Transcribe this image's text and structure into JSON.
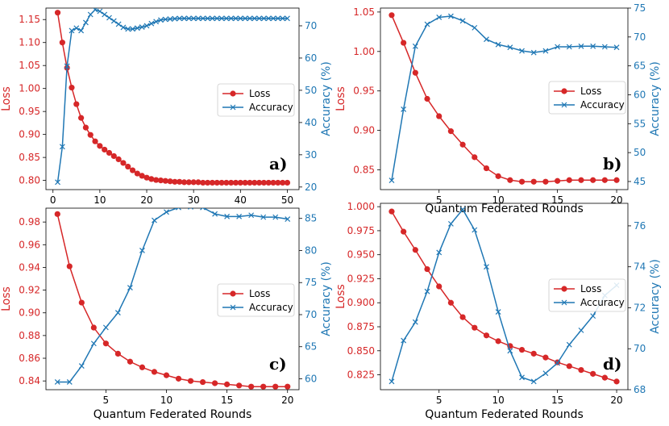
{
  "colors": {
    "loss": "#d62728",
    "accuracy": "#1f77b4"
  },
  "chart_data": [
    {
      "type": "line",
      "panel_label": "a)",
      "xlabel": "",
      "ylabel_left": "Loss",
      "ylabel_right": "Accuracy (%)",
      "xlim": [
        -1.5,
        52.5
      ],
      "ylim_left": [
        0.78,
        1.175
      ],
      "ylim_right": [
        19.2,
        75.5
      ],
      "xticks": [
        0,
        10,
        20,
        30,
        40,
        50
      ],
      "yticks_left": [
        0.8,
        0.85,
        0.9,
        0.95,
        1.0,
        1.05,
        1.1,
        1.15
      ],
      "yticks_right": [
        20,
        30,
        40,
        50,
        60,
        70
      ],
      "legend": [
        "Loss",
        "Accuracy"
      ],
      "x": [
        1,
        2,
        3,
        4,
        5,
        6,
        7,
        8,
        9,
        10,
        11,
        12,
        13,
        14,
        15,
        16,
        17,
        18,
        19,
        20,
        21,
        22,
        23,
        24,
        25,
        26,
        27,
        28,
        29,
        30,
        31,
        32,
        33,
        34,
        35,
        36,
        37,
        38,
        39,
        40,
        41,
        42,
        43,
        44,
        45,
        46,
        47,
        48,
        49,
        50
      ],
      "series": [
        {
          "name": "Loss",
          "axis": "left",
          "values": [
            1.165,
            1.1,
            1.045,
            1.002,
            0.966,
            0.936,
            0.915,
            0.899,
            0.885,
            0.875,
            0.867,
            0.86,
            0.853,
            0.846,
            0.838,
            0.83,
            0.822,
            0.815,
            0.81,
            0.806,
            0.803,
            0.801,
            0.8,
            0.799,
            0.798,
            0.797,
            0.797,
            0.796,
            0.796,
            0.796,
            0.796,
            0.795,
            0.795,
            0.795,
            0.795,
            0.795,
            0.795,
            0.795,
            0.795,
            0.795,
            0.795,
            0.795,
            0.795,
            0.795,
            0.795,
            0.795,
            0.795,
            0.795,
            0.795,
            0.795
          ]
        },
        {
          "name": "Accuracy",
          "axis": "right",
          "values": [
            21.5,
            32.5,
            57.5,
            68.5,
            69.3,
            68.5,
            71.0,
            73.5,
            75.0,
            74.5,
            73.5,
            72.5,
            71.5,
            70.5,
            69.5,
            69.0,
            69.0,
            69.3,
            69.6,
            70.0,
            70.7,
            71.3,
            71.8,
            72.0,
            72.1,
            72.2,
            72.3,
            72.3,
            72.3,
            72.3,
            72.3,
            72.3,
            72.3,
            72.3,
            72.3,
            72.3,
            72.3,
            72.3,
            72.3,
            72.3,
            72.3,
            72.3,
            72.3,
            72.3,
            72.3,
            72.3,
            72.3,
            72.3,
            72.3,
            72.3
          ]
        }
      ]
    },
    {
      "type": "line",
      "panel_label": "b)",
      "xlabel": "Quantum Federated Rounds",
      "ylabel_left": "Loss",
      "ylabel_right": "Accuracy (%)",
      "xlim": [
        0.05,
        20.95
      ],
      "ylim_left": [
        0.825,
        1.055
      ],
      "ylim_right": [
        43.6,
        75
      ],
      "xticks": [
        5,
        10,
        15,
        20
      ],
      "yticks_left": [
        0.85,
        0.9,
        0.95,
        1.0,
        1.05
      ],
      "yticks_right": [
        45,
        50,
        55,
        60,
        65,
        70,
        75
      ],
      "legend": [
        "Loss",
        "Accuracy"
      ],
      "x": [
        1,
        2,
        3,
        4,
        5,
        6,
        7,
        8,
        9,
        10,
        11,
        12,
        13,
        14,
        15,
        16,
        17,
        18,
        19,
        20
      ],
      "series": [
        {
          "name": "Loss",
          "axis": "left",
          "values": [
            1.046,
            1.011,
            0.973,
            0.94,
            0.918,
            0.899,
            0.882,
            0.866,
            0.852,
            0.842,
            0.837,
            0.835,
            0.835,
            0.835,
            0.836,
            0.837,
            0.837,
            0.837,
            0.837,
            0.837
          ]
        },
        {
          "name": "Accuracy",
          "axis": "right",
          "values": [
            45.2,
            57.5,
            68.4,
            72.2,
            73.4,
            73.6,
            72.8,
            71.6,
            69.6,
            68.7,
            68.2,
            67.6,
            67.3,
            67.6,
            68.3,
            68.3,
            68.4,
            68.4,
            68.3,
            68.2
          ]
        }
      ]
    },
    {
      "type": "line",
      "panel_label": "c)",
      "xlabel": "Quantum Federated Rounds",
      "ylabel_left": "Loss",
      "ylabel_right": "Accuracy (%)",
      "xlim": [
        0.05,
        20.95
      ],
      "ylim_left": [
        0.8323,
        0.9922
      ],
      "ylim_right": [
        58.3,
        86.6
      ],
      "xticks": [
        5,
        10,
        15,
        20
      ],
      "yticks_left": [
        0.84,
        0.86,
        0.88,
        0.9,
        0.92,
        0.94,
        0.96,
        0.98
      ],
      "yticks_right": [
        60,
        65,
        70,
        75,
        80,
        85
      ],
      "legend": [
        "Loss",
        "Accuracy"
      ],
      "x": [
        1,
        2,
        3,
        4,
        5,
        6,
        7,
        8,
        9,
        10,
        11,
        12,
        13,
        14,
        15,
        16,
        17,
        18,
        19,
        20
      ],
      "series": [
        {
          "name": "Loss",
          "axis": "left",
          "values": [
            0.987,
            0.941,
            0.909,
            0.887,
            0.873,
            0.864,
            0.857,
            0.852,
            0.848,
            0.845,
            0.842,
            0.84,
            0.839,
            0.838,
            0.837,
            0.836,
            0.835,
            0.835,
            0.835,
            0.835
          ]
        },
        {
          "name": "Accuracy",
          "axis": "right",
          "values": [
            59.5,
            59.5,
            62.0,
            65.5,
            68.0,
            70.3,
            74.2,
            80.0,
            84.7,
            86.0,
            86.7,
            86.8,
            86.7,
            85.7,
            85.3,
            85.3,
            85.5,
            85.2,
            85.2,
            84.9
          ]
        }
      ]
    },
    {
      "type": "line",
      "panel_label": "d)",
      "xlabel": "Quantum Federated Rounds",
      "ylabel_left": "Loss",
      "ylabel_right": "Accuracy (%)",
      "xlim": [
        0.05,
        20.95
      ],
      "ylim_left": [
        0.8095,
        1.0035
      ],
      "ylim_right": [
        68,
        77.1
      ],
      "xticks": [
        5,
        10,
        15,
        20
      ],
      "yticks_left": [
        0.825,
        0.85,
        0.875,
        0.9,
        0.925,
        0.95,
        0.975,
        1.0
      ],
      "yticks_right": [
        68,
        70,
        72,
        74,
        76
      ],
      "legend": [
        "Loss",
        "Accuracy"
      ],
      "x": [
        1,
        2,
        3,
        4,
        5,
        6,
        7,
        8,
        9,
        10,
        11,
        12,
        13,
        14,
        15,
        16,
        17,
        18,
        19,
        20
      ],
      "series": [
        {
          "name": "Loss",
          "axis": "left",
          "values": [
            0.995,
            0.974,
            0.955,
            0.935,
            0.917,
            0.9,
            0.885,
            0.874,
            0.866,
            0.86,
            0.855,
            0.851,
            0.847,
            0.843,
            0.838,
            0.834,
            0.83,
            0.826,
            0.822,
            0.818
          ]
        },
        {
          "name": "Accuracy",
          "axis": "right",
          "values": [
            68.4,
            70.4,
            71.3,
            72.8,
            74.7,
            76.1,
            76.8,
            75.8,
            74.0,
            71.8,
            69.9,
            68.6,
            68.4,
            68.8,
            69.3,
            70.2,
            70.9,
            71.6,
            72.6,
            73.1
          ]
        }
      ]
    }
  ]
}
